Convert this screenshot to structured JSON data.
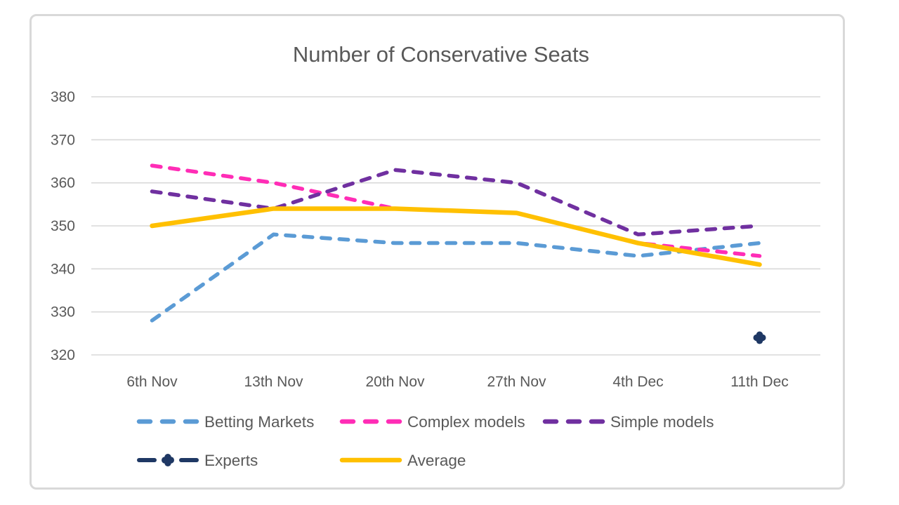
{
  "chart_data": {
    "type": "line",
    "title": "Number of Conservative Seats",
    "categories": [
      "6th Nov",
      "13th Nov",
      "20th Nov",
      "27th Nov",
      "4th Dec",
      "11th Dec"
    ],
    "series": [
      {
        "name": "Betting Markets",
        "color": "#5B9BD5",
        "style": "dashed",
        "values": [
          328,
          348,
          346,
          346,
          343,
          346
        ]
      },
      {
        "name": "Complex models",
        "color": "#FF2DB6",
        "style": "dashed",
        "values": [
          364,
          360,
          354,
          353,
          346,
          343
        ]
      },
      {
        "name": "Simple models",
        "color": "#7030A0",
        "style": "dashed",
        "values": [
          358,
          354,
          363,
          360,
          348,
          350
        ]
      },
      {
        "name": "Experts",
        "color": "#1F3864",
        "style": "dashed",
        "marker": "clover",
        "values": [
          null,
          null,
          null,
          null,
          null,
          324
        ]
      },
      {
        "name": "Average",
        "color": "#FFC000",
        "style": "solid",
        "values": [
          350,
          354,
          354,
          353,
          346,
          341
        ]
      }
    ],
    "yticks": [
      320,
      330,
      340,
      350,
      360,
      370,
      380
    ],
    "ylim": [
      320,
      380
    ],
    "grid": true,
    "legend_position": "bottom",
    "legend_rows": [
      [
        "Betting Markets",
        "Complex models",
        "Simple models"
      ],
      [
        "Experts",
        "Average"
      ]
    ],
    "colors": {
      "text": "#595959",
      "gridline": "#D9D9D9",
      "frame_border": "#D9D9D9",
      "background": "#FFFFFF"
    }
  }
}
